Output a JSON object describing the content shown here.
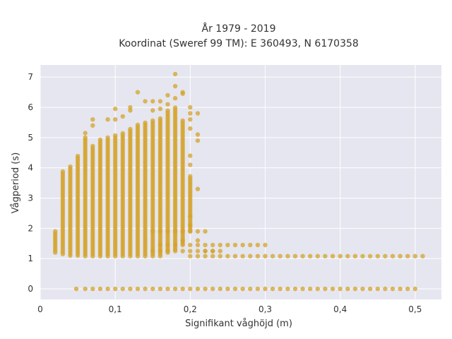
{
  "chart_data": {
    "type": "scatter",
    "title_line1": "År 1979 - 2019",
    "title_line2": "Koordinat (Sweref 99 TM): E 360493, N 6170358",
    "xlabel": "Signifikant våghöjd (m)",
    "ylabel": "Vågperiod (s)",
    "xlim": [
      0,
      0.535
    ],
    "ylim": [
      -0.35,
      7.4
    ],
    "x_ticks": [
      0,
      0.1,
      0.2,
      0.3,
      0.4,
      0.5
    ],
    "x_tick_labels": [
      "0",
      "0,1",
      "0,2",
      "0,3",
      "0,4",
      "0,5"
    ],
    "y_ticks": [
      0,
      1,
      2,
      3,
      4,
      5,
      6,
      7
    ],
    "y_tick_labels": [
      "0",
      "1",
      "2",
      "3",
      "4",
      "5",
      "6",
      "7"
    ],
    "grid": true,
    "legend": "none",
    "colors": {
      "marker": "#D4A32A",
      "plot_bg": "#E5E6EF",
      "grid": "#ffffff"
    },
    "series": [
      {
        "x_step": 0.01,
        "columns": [
          {
            "x": 0.02,
            "ymin": 1.2,
            "ymax": 1.9
          },
          {
            "x": 0.03,
            "ymin": 1.15,
            "ymax": 3.9
          },
          {
            "x": 0.04,
            "ymin": 1.1,
            "ymax": 4.1
          },
          {
            "x": 0.05,
            "ymin": 1.1,
            "ymax": 4.45
          },
          {
            "x": 0.06,
            "ymin": 1.08,
            "ymax": 5.0
          },
          {
            "x": 0.07,
            "ymin": 1.08,
            "ymax": 4.75
          },
          {
            "x": 0.08,
            "ymin": 1.08,
            "ymax": 4.95
          },
          {
            "x": 0.09,
            "ymin": 1.08,
            "ymax": 5.05
          },
          {
            "x": 0.1,
            "ymin": 1.08,
            "ymax": 5.1
          },
          {
            "x": 0.11,
            "ymin": 1.08,
            "ymax": 5.15
          },
          {
            "x": 0.12,
            "ymin": 1.08,
            "ymax": 5.3
          },
          {
            "x": 0.13,
            "ymin": 1.08,
            "ymax": 5.45
          },
          {
            "x": 0.14,
            "ymin": 1.08,
            "ymax": 5.5
          },
          {
            "x": 0.15,
            "ymin": 1.08,
            "ymax": 5.6
          },
          {
            "x": 0.16,
            "ymin": 1.08,
            "ymax": 5.65
          },
          {
            "x": 0.17,
            "ymin": 1.2,
            "ymax": 5.9
          },
          {
            "x": 0.18,
            "ymin": 1.3,
            "ymax": 6.0
          },
          {
            "x": 0.19,
            "ymin": 1.5,
            "ymax": 5.6
          },
          {
            "x": 0.2,
            "ymin": 1.9,
            "ymax": 3.75
          }
        ],
        "outliers": [
          [
            0.18,
            7.1
          ],
          [
            0.19,
            6.5
          ],
          [
            0.18,
            6.7
          ],
          [
            0.17,
            6.4
          ],
          [
            0.17,
            6.1
          ],
          [
            0.13,
            6.5
          ],
          [
            0.14,
            6.2
          ],
          [
            0.15,
            6.2
          ],
          [
            0.16,
            6.2
          ],
          [
            0.12,
            5.9
          ],
          [
            0.1,
            5.95
          ],
          [
            0.11,
            5.7
          ],
          [
            0.1,
            5.6
          ],
          [
            0.09,
            5.6
          ],
          [
            0.07,
            5.6
          ],
          [
            0.07,
            5.4
          ],
          [
            0.2,
            6.0
          ],
          [
            0.2,
            5.8
          ],
          [
            0.21,
            5.8
          ],
          [
            0.2,
            5.6
          ],
          [
            0.2,
            5.3
          ],
          [
            0.21,
            5.1
          ],
          [
            0.21,
            4.9
          ],
          [
            0.19,
            6.45
          ],
          [
            0.18,
            6.3
          ],
          [
            0.2,
            4.4
          ],
          [
            0.2,
            4.1
          ],
          [
            0.21,
            3.3
          ],
          [
            0.2,
            2.4
          ],
          [
            0.2,
            2.1
          ],
          [
            0.06,
            5.15
          ],
          [
            0.12,
            6.0
          ],
          [
            0.15,
            5.9
          ],
          [
            0.16,
            5.95
          ]
        ],
        "rows": [
          {
            "y": 1.9,
            "x_from": 0.15,
            "x_to": 0.22
          },
          {
            "y": 1.45,
            "x_from": 0.16,
            "x_to": 0.3
          },
          {
            "y": 1.25,
            "x_from": 0.15,
            "x_to": 0.24
          },
          {
            "y": 1.08,
            "x_from": 0.2,
            "x_to": 0.51
          },
          {
            "y": 0.0,
            "x_from": 0.06,
            "x_to": 0.5
          }
        ],
        "extra_points": [
          [
            0.048,
            0.0
          ],
          [
            0.19,
            1.6
          ],
          [
            0.21,
            1.6
          ],
          [
            0.22,
            1.25
          ],
          [
            0.23,
            1.25
          ]
        ]
      }
    ]
  }
}
